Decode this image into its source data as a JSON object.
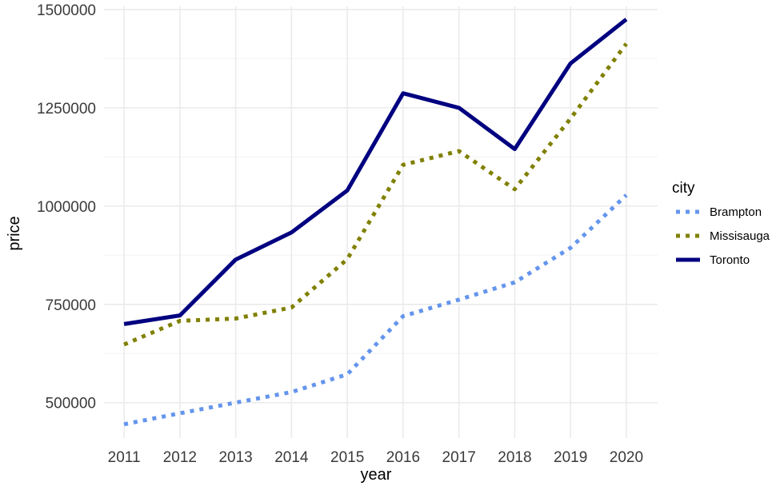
{
  "chart_data": {
    "type": "line",
    "title": "",
    "xlabel": "year",
    "ylabel": "price",
    "x": [
      2011,
      2012,
      2013,
      2014,
      2015,
      2016,
      2017,
      2018,
      2019,
      2020
    ],
    "xlim": [
      2010.64,
      2020.56
    ],
    "ylim": [
      410000,
      1508000
    ],
    "y_ticks": [
      500000,
      750000,
      1000000,
      1250000,
      1500000
    ],
    "y_tick_labels": [
      "500000",
      "750000",
      "1000000",
      "1250000",
      "1500000"
    ],
    "x_tick_labels": [
      "2011",
      "2012",
      "2013",
      "2014",
      "2015",
      "2016",
      "2017",
      "2018",
      "2019",
      "2020"
    ],
    "grid": true,
    "legend_title": "city",
    "legend_position": "right",
    "series": [
      {
        "name": "Brampton",
        "color": "#6495ED",
        "line_style": "dotted",
        "values": [
          445000,
          473000,
          500000,
          527000,
          572000,
          720000,
          762000,
          806000,
          894000,
          1028000
        ]
      },
      {
        "name": "Missisauga",
        "color": "#808000",
        "line_style": "dotted",
        "values": [
          648000,
          708000,
          714000,
          742000,
          865000,
          1105000,
          1140000,
          1043000,
          1223000,
          1413000
        ]
      },
      {
        "name": "Toronto",
        "color": "#000080",
        "line_style": "solid",
        "values": [
          700000,
          722000,
          864000,
          933000,
          1040000,
          1287000,
          1250000,
          1145000,
          1363000,
          1475000
        ]
      }
    ]
  }
}
